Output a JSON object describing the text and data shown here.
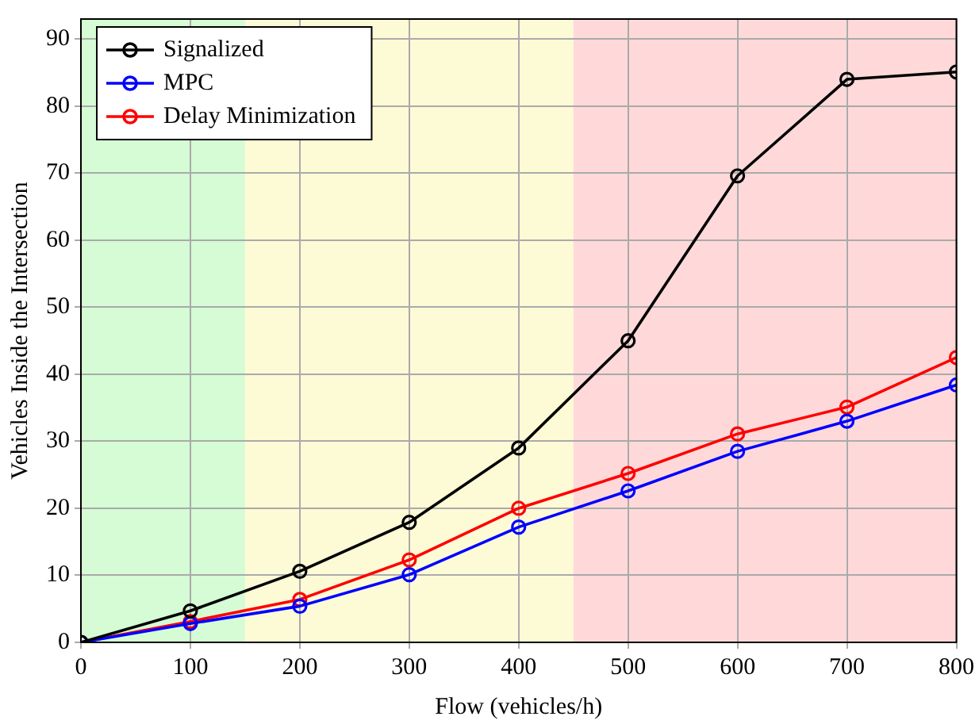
{
  "chart_data": {
    "type": "line",
    "xlabel": "Flow (vehicles/h)",
    "ylabel": "Vehicles Inside the Intersection",
    "x": [
      0,
      100,
      200,
      300,
      400,
      500,
      600,
      700,
      800
    ],
    "series": [
      {
        "name": "Signalized",
        "color": "#000000",
        "values": [
          0,
          4.7,
          10.6,
          17.9,
          29,
          45,
          69.6,
          84,
          85.1
        ]
      },
      {
        "name": "MPC",
        "color": "#0000ff",
        "values": [
          0,
          2.8,
          5.4,
          10.1,
          17.2,
          22.6,
          28.5,
          33,
          38.4
        ]
      },
      {
        "name": "Delay Minimization",
        "color": "#ff0000",
        "values": [
          0,
          3.1,
          6.4,
          12.3,
          20,
          25.2,
          31.1,
          35.1,
          42.5
        ]
      }
    ],
    "bands": [
      {
        "axis": "x",
        "from": 0,
        "to": 150,
        "color": "#d5fcd5"
      },
      {
        "axis": "x",
        "from": 150,
        "to": 450,
        "color": "#fdfad6"
      },
      {
        "axis": "x",
        "from": 450,
        "to": 800,
        "color": "#ffd9d9"
      }
    ],
    "xlim": [
      0,
      800
    ],
    "xticks": [
      0,
      100,
      200,
      300,
      400,
      500,
      600,
      700,
      800
    ],
    "ylim": [
      0,
      93
    ],
    "yticks": [
      0,
      10,
      20,
      30,
      40,
      50,
      60,
      70,
      80,
      90
    ],
    "grid": true,
    "legend": "top left",
    "marker": "circle",
    "line_style": "solid"
  }
}
